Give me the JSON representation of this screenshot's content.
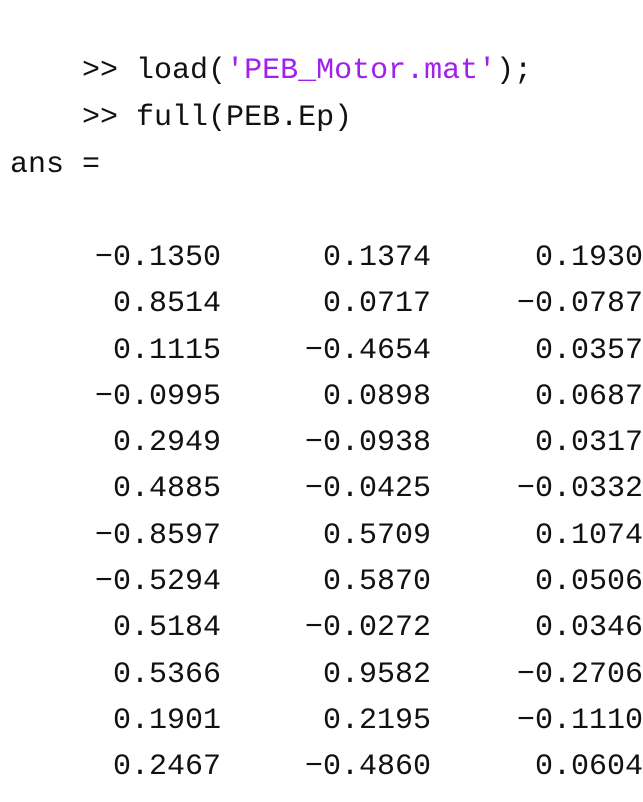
{
  "commands": [
    {
      "prompt": ">>",
      "before": "load(",
      "string": "'PEB_Motor.mat'",
      "after": ");"
    },
    {
      "prompt": ">>",
      "before": "full(PEB.Ep)",
      "string": "",
      "after": ""
    }
  ],
  "output_label": "ans =",
  "colors": {
    "string": "#a020f0",
    "text": "#111111",
    "background": "#ffffff"
  },
  "matrix": [
    [
      "-0.1350",
      "0.1374",
      "0.1930"
    ],
    [
      "0.8514",
      "0.0717",
      "-0.0787"
    ],
    [
      "0.1115",
      "-0.4654",
      "0.0357"
    ],
    [
      "-0.0995",
      "0.0898",
      "0.0687"
    ],
    [
      "0.2949",
      "-0.0938",
      "0.0317"
    ],
    [
      "0.4885",
      "-0.0425",
      "-0.0332"
    ],
    [
      "-0.8597",
      "0.5709",
      "0.1074"
    ],
    [
      "-0.5294",
      "0.5870",
      "0.0506"
    ],
    [
      "0.5184",
      "-0.0272",
      "0.0346"
    ],
    [
      "0.5366",
      "0.9582",
      "-0.2706"
    ],
    [
      "0.1901",
      "0.2195",
      "-0.1110"
    ],
    [
      "0.2467",
      "-0.4860",
      "0.0604"
    ]
  ]
}
